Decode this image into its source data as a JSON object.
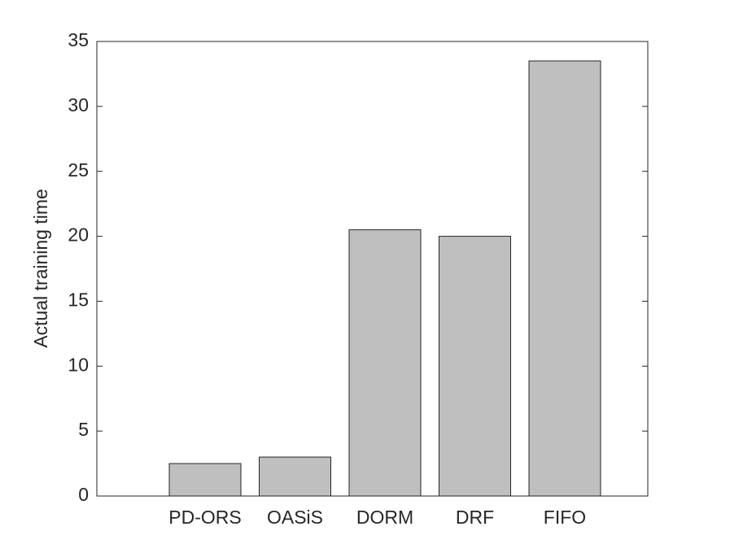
{
  "chart_data": {
    "type": "bar",
    "y_label": "Actual training time",
    "categories": [
      "PD-ORS",
      "OASiS",
      "DORM",
      "DRF",
      "FIFO"
    ],
    "values": [
      2.5,
      3.0,
      20.5,
      20.0,
      33.5
    ],
    "color": "#bfbfbf",
    "ylim": [
      0,
      35
    ],
    "yticks": [
      0,
      5,
      10,
      15,
      20,
      25,
      30,
      35
    ],
    "grid": false
  }
}
